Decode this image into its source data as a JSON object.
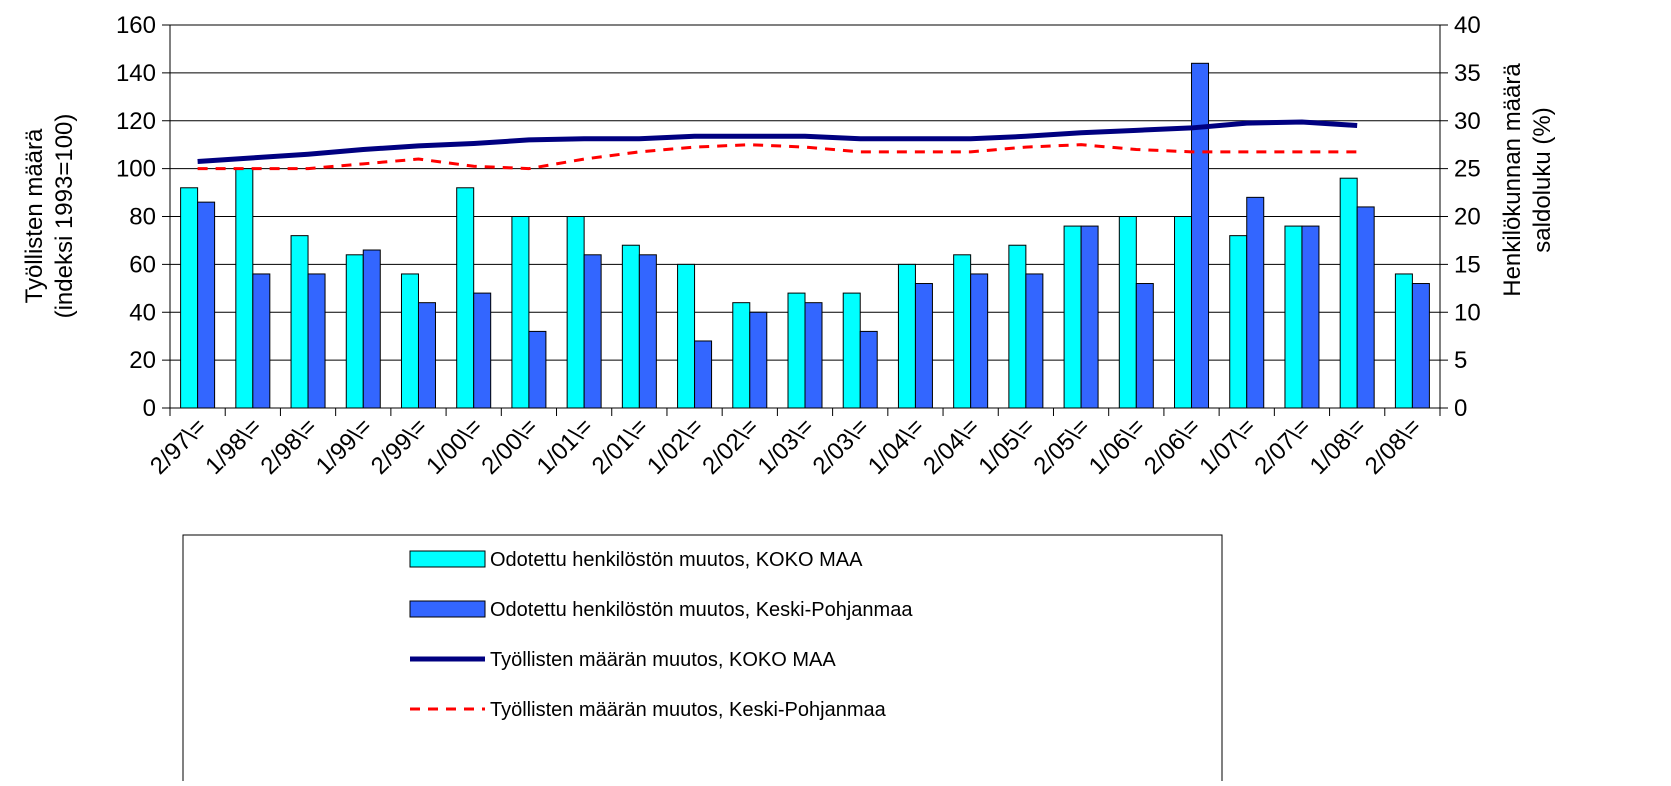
{
  "chart_data": {
    "type": "combo",
    "ylabel": [
      "Työllisten määrä",
      "(indeksi 1993=100)"
    ],
    "y2label": [
      "Henkilökunnan määrä",
      "saldoluku (%)"
    ],
    "categories": [
      "2/97\\=",
      "1/98\\=",
      "2/98\\=",
      "1/99\\=",
      "2/99\\=",
      "1/00\\=",
      "2/00\\=",
      "1/01\\=",
      "2/01\\=",
      "1/02\\=",
      "2/02\\=",
      "1/03\\=",
      "2/03\\=",
      "1/04\\=",
      "2/04\\=",
      "1/05\\=",
      "2/05\\=",
      "1/06\\=",
      "2/06\\=",
      "1/07\\=",
      "2/07\\=",
      "1/08\\=",
      "2/08\\="
    ],
    "series": [
      {
        "name": "Odotettu henkilöstön muutos, KOKO MAA",
        "type": "bar",
        "axis": "y2",
        "color": "#00ffff",
        "values": [
          23,
          25,
          18,
          16,
          14,
          23,
          20,
          20,
          17,
          15,
          11,
          12,
          12,
          15,
          16,
          17,
          19,
          20,
          20,
          18,
          19,
          24,
          14
        ]
      },
      {
        "name": "Odotettu henkilöstön muutos, Keski-Pohjanmaa",
        "type": "bar",
        "axis": "y2",
        "color": "#3366ff",
        "values": [
          21.5,
          14,
          14,
          16.5,
          11,
          12,
          8,
          16,
          16,
          7,
          10,
          11,
          8,
          13,
          14,
          14,
          19,
          13,
          36,
          22,
          19,
          21,
          13
        ]
      },
      {
        "name": "Työllisten määrän muutos, KOKO MAA",
        "type": "line",
        "color": "#000080",
        "style": "solid",
        "values": [
          103,
          104.5,
          106,
          108,
          109.5,
          110.5,
          112,
          112.5,
          112.5,
          113.5,
          113.5,
          113.5,
          112.5,
          112.5,
          112.5,
          113.5,
          115,
          116,
          117,
          119,
          119.5,
          118,
          null
        ]
      },
      {
        "name": "Työllisten määrän muutos, Keski-Pohjanmaa",
        "type": "line",
        "color": "#ff0000",
        "style": "dashed",
        "values": [
          100,
          100,
          100,
          102,
          104,
          101,
          100,
          104,
          107,
          109,
          110,
          109,
          107,
          107,
          107,
          109,
          110,
          108,
          107,
          107,
          107,
          107,
          null
        ]
      }
    ],
    "ylim": [
      0,
      160
    ],
    "yticks": [
      0,
      20,
      40,
      60,
      80,
      100,
      120,
      140,
      160
    ],
    "y2lim": [
      0,
      40
    ],
    "y2ticks": [
      0,
      5,
      10,
      15,
      20,
      25,
      30,
      35,
      40
    ],
    "grid": true
  }
}
